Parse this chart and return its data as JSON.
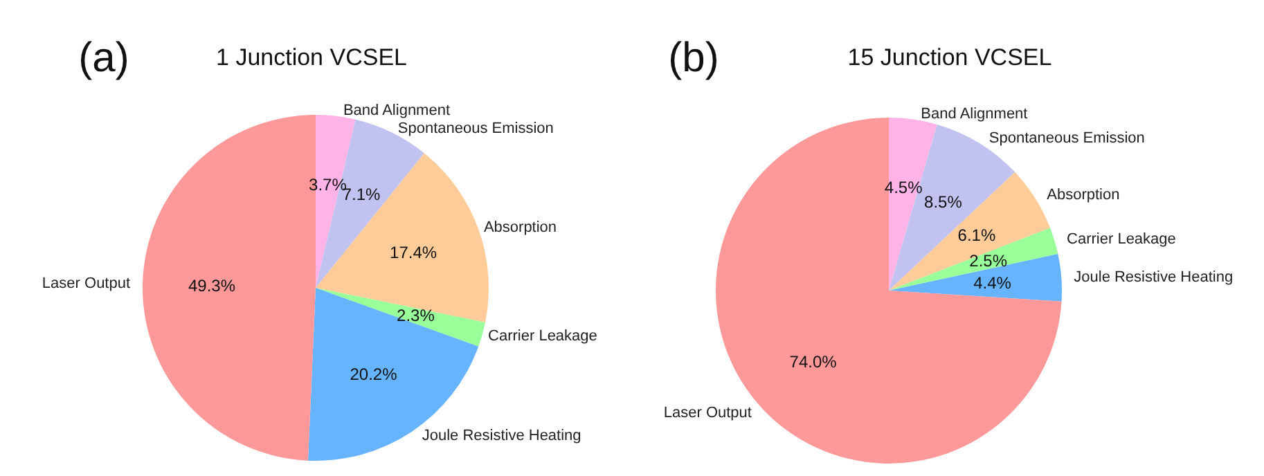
{
  "chart_data": [
    {
      "type": "pie",
      "title": "1 Junction VCSEL",
      "annotations": [
        "(a)"
      ],
      "categories": [
        "Band Alignment",
        "Spontaneous Emission",
        "Absorption",
        "Carrier Leakage",
        "Joule Resistive Heating",
        "Laser Output"
      ],
      "values": [
        3.7,
        7.1,
        17.4,
        2.3,
        20.2,
        49.3
      ],
      "value_labels": [
        "3.7%",
        "7.1%",
        "17.4%",
        "2.3%",
        "20.2%",
        "49.3%"
      ],
      "colors": [
        "#ffb3e6",
        "#c2c2f0",
        "#ffcc99",
        "#99ff99",
        "#66b3ff",
        "#ff9999"
      ],
      "legend": false
    },
    {
      "type": "pie",
      "title": "15 Junction VCSEL",
      "annotations": [
        "(b)"
      ],
      "categories": [
        "Band Alignment",
        "Spontaneous Emission",
        "Absorption",
        "Carrier Leakage",
        "Joule Resistive Heating",
        "Laser Output"
      ],
      "values": [
        4.5,
        8.5,
        6.1,
        2.5,
        4.4,
        74.0
      ],
      "value_labels": [
        "4.5%",
        "8.5%",
        "6.1%",
        "2.5%",
        "4.4%",
        "74.0%"
      ],
      "colors": [
        "#ffb3e6",
        "#c2c2f0",
        "#ffcc99",
        "#99ff99",
        "#66b3ff",
        "#ff9999"
      ],
      "legend": false
    }
  ]
}
